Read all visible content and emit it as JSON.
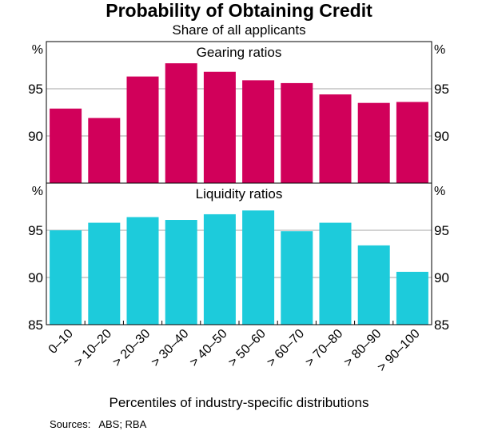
{
  "title": "Probability of Obtaining Credit",
  "subtitle": "Share of all applicants",
  "xlabel": "Percentiles of industry-specific distributions",
  "sources_label": "Sources:",
  "sources_text": "ABS; RBA",
  "colors": {
    "gearing": "#d1005a",
    "liquidity": "#1dcbdb",
    "grid": "#a6a6a6",
    "axis": "#000000"
  },
  "chart_data": [
    {
      "type": "bar",
      "title": "Gearing ratios",
      "unit_left": "%",
      "unit_right": "%",
      "ylim": [
        85,
        100
      ],
      "yticks": [
        90,
        95
      ],
      "grid": true,
      "categories": [
        "0–10",
        "> 10–20",
        "> 20–30",
        "> 30–40",
        "> 40–50",
        "> 50–60",
        "> 60–70",
        "> 70–80",
        "> 80–90",
        "> 90–100"
      ],
      "values": [
        92.9,
        91.9,
        96.3,
        97.7,
        96.8,
        95.9,
        95.6,
        94.4,
        93.5,
        93.6
      ]
    },
    {
      "type": "bar",
      "title": "Liquidity ratios",
      "unit_left": "%",
      "unit_right": "%",
      "ylim": [
        85,
        100
      ],
      "yticks": [
        85,
        90,
        95
      ],
      "grid": true,
      "categories": [
        "0–10",
        "> 10–20",
        "> 20–30",
        "> 30–40",
        "> 40–50",
        "> 50–60",
        "> 60–70",
        "> 70–80",
        "> 80–90",
        "> 90–100"
      ],
      "values": [
        95.0,
        95.8,
        96.4,
        96.1,
        96.7,
        97.1,
        94.9,
        95.8,
        93.4,
        90.6
      ]
    }
  ]
}
